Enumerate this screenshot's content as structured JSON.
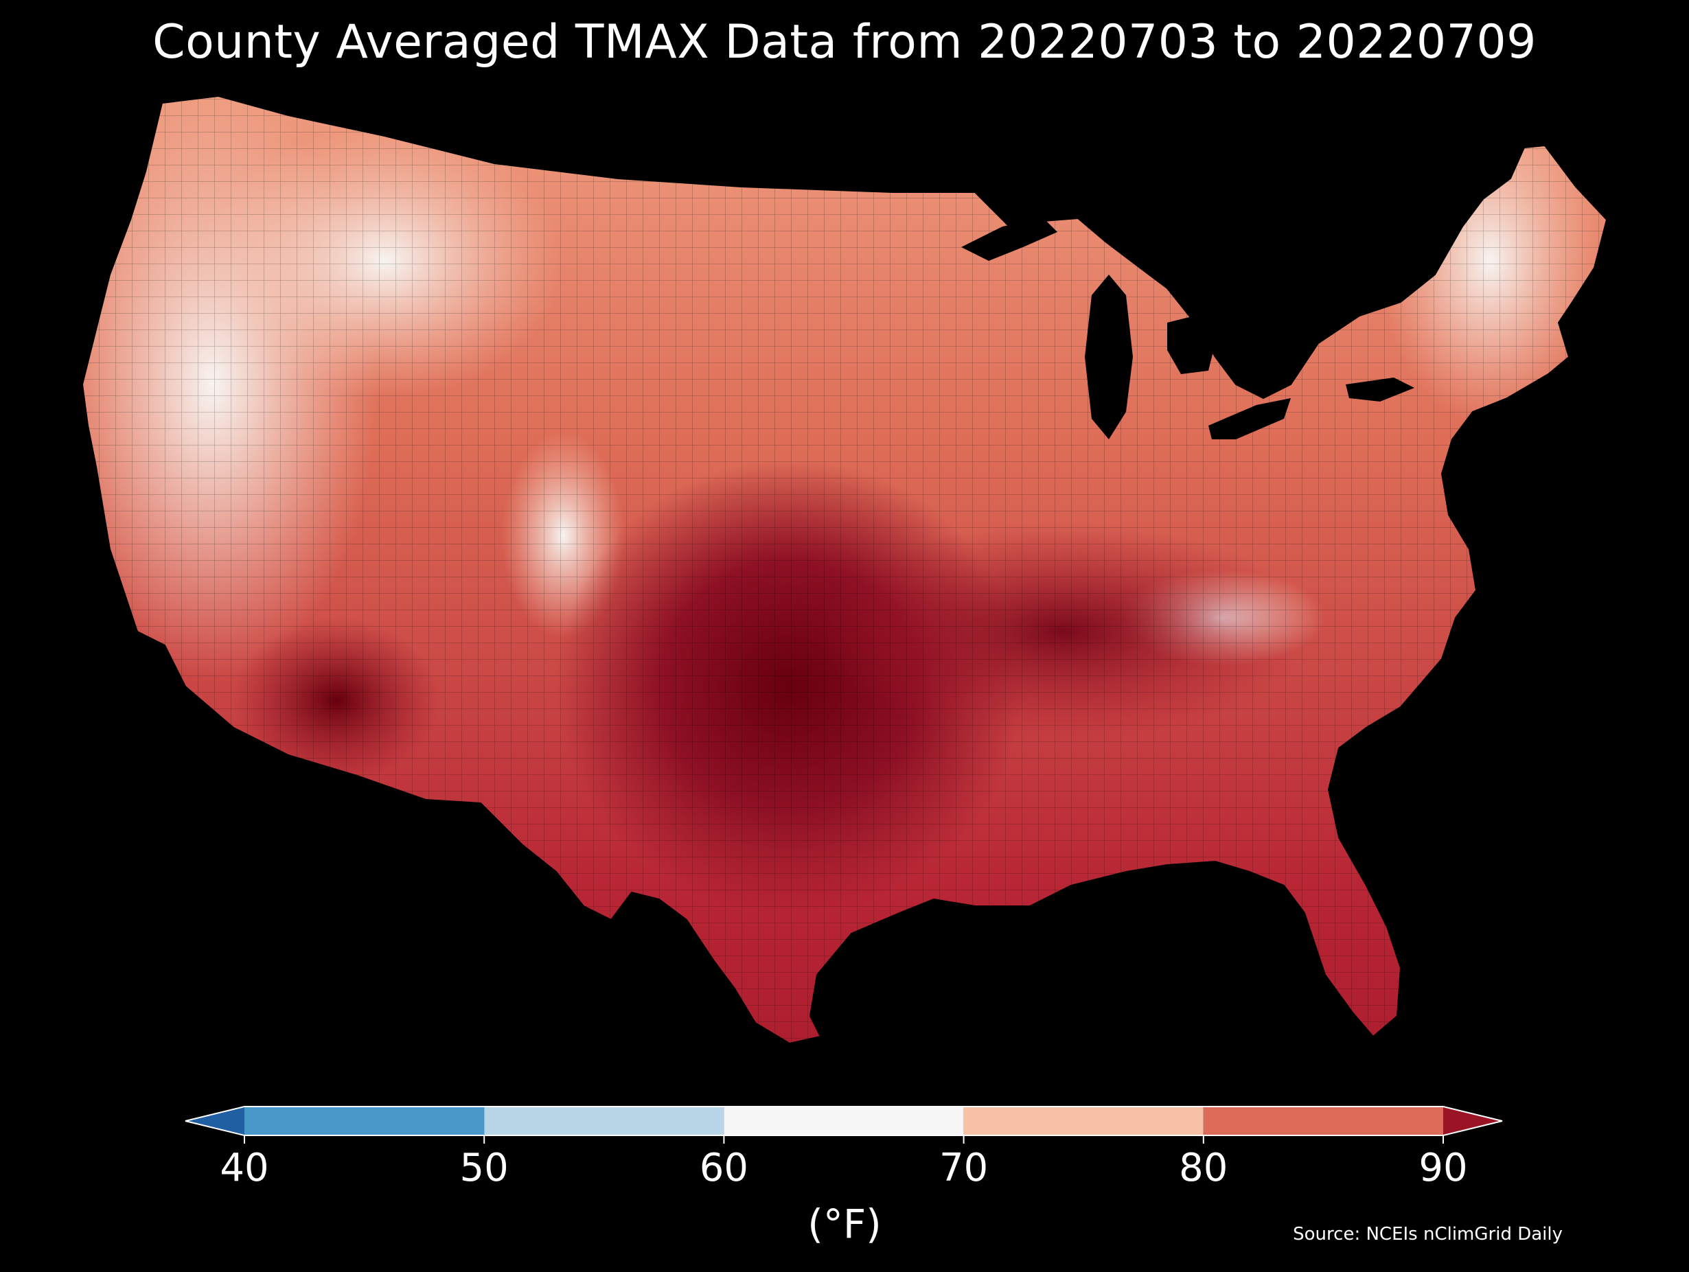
{
  "title": "County Averaged TMAX Data from 20220703 to 20220709",
  "colorbar": {
    "unit": "(°F)",
    "ticks": [
      {
        "label": "40",
        "value": 40
      },
      {
        "label": "50",
        "value": 50
      },
      {
        "label": "60",
        "value": 60
      },
      {
        "label": "70",
        "value": 70
      },
      {
        "label": "80",
        "value": 80
      },
      {
        "label": "90",
        "value": 90
      }
    ],
    "range": [
      40,
      90
    ],
    "extend": "both",
    "bins": [
      {
        "from": 40,
        "to": 50,
        "color": "#4a98c9"
      },
      {
        "from": 50,
        "to": 60,
        "color": "#b7d6e8"
      },
      {
        "from": 60,
        "to": 70,
        "color": "#f6f6f6"
      },
      {
        "from": 70,
        "to": 80,
        "color": "#f8c1a6"
      },
      {
        "from": 80,
        "to": 90,
        "color": "#dd6b59"
      }
    ],
    "under_color": "#1f5fa2",
    "over_color": "#9b1426"
  },
  "source": "Source: NCEIs nClimGrid Daily",
  "colors": {
    "background": "#000000",
    "map_outline": "#000000",
    "label_text": "#ffffff"
  }
}
